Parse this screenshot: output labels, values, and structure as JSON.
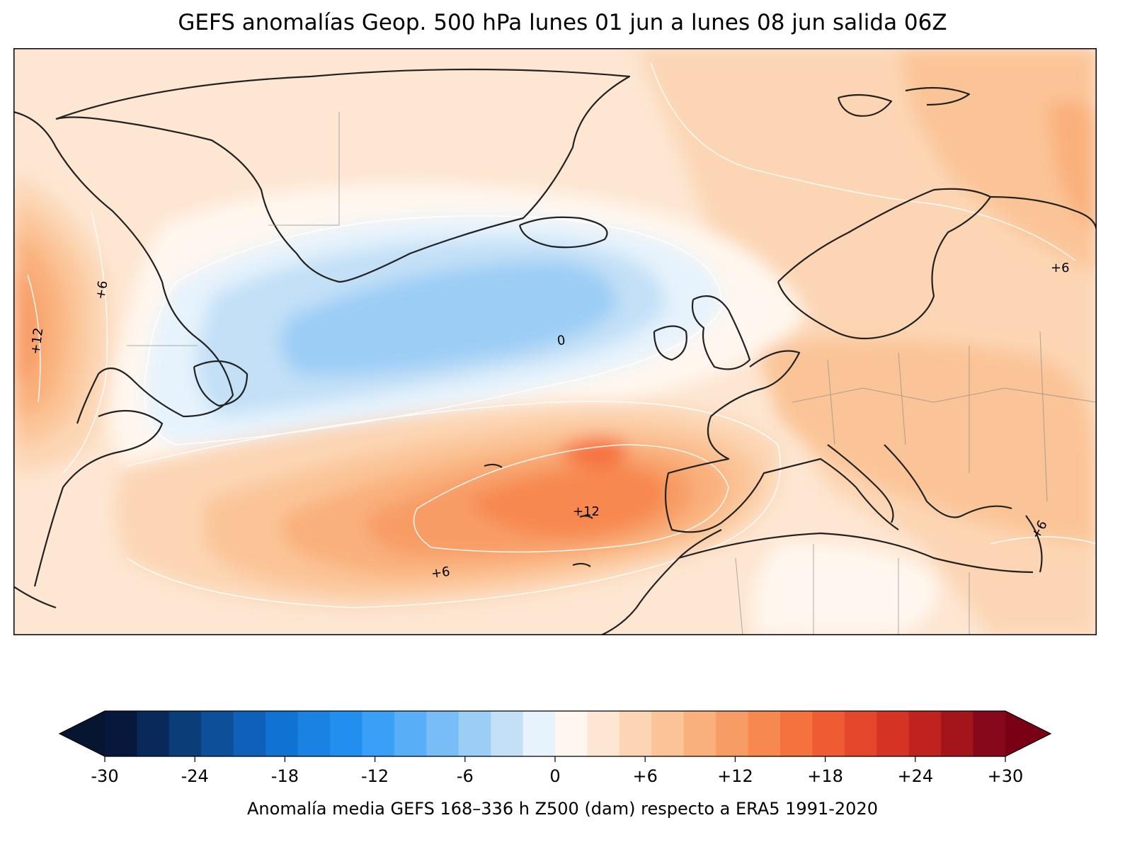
{
  "title": "GEFS anomalías Geop. 500 hPa lunes 01 jun a lunes 08 jun salida 06Z",
  "contour_labels": {
    "zero": "0",
    "plus12_atlantic": "+12",
    "plus6_atlantic": "+6",
    "plus6_canada": "+6",
    "plus12_canada": "+12",
    "plus6_russia": "+6",
    "plus6_egypt": "+6"
  },
  "colorbar": {
    "label": "Anomalía media GEFS 168–336 h Z500 (dam) respecto a ERA5 1991-2020",
    "ticks": [
      "-30",
      "-24",
      "-18",
      "-12",
      "-6",
      "0",
      "+6",
      "+12",
      "+18",
      "+24",
      "+30"
    ],
    "tick_values": [
      -30,
      -24,
      -18,
      -12,
      -6,
      0,
      6,
      12,
      18,
      24,
      30
    ],
    "range": [
      -30,
      30
    ],
    "step": 2,
    "colors": [
      "#08183c",
      "#08295a",
      "#0b3d78",
      "#0d4f98",
      "#0f60b8",
      "#1072d2",
      "#1a82e2",
      "#228ff0",
      "#3a9ff6",
      "#58aef7",
      "#78bdf5",
      "#9ccdf5",
      "#c3e0f7",
      "#e6f3fc",
      "#fff7ef",
      "#fde6d2",
      "#fcd6b4",
      "#fbc497",
      "#f9b07c",
      "#f89c66",
      "#f78850",
      "#f5723f",
      "#ef5c34",
      "#e5472c",
      "#d53324",
      "#c0221f",
      "#a3151a",
      "#87081a"
    ],
    "under_color": "#061530",
    "over_color": "#7a0014"
  },
  "chart_data": {
    "type": "heatmap",
    "title": "GEFS anomalías Geop. 500 hPa lunes 01 jun a lunes 08 jun salida 06Z",
    "variable": "Z500 anomaly",
    "unit": "dam",
    "contour_interval": 6,
    "labeled_contours": [
      0,
      6,
      12
    ],
    "features": [
      {
        "name": "negative anomaly south of Greenland / Iceland",
        "min_value": -6
      },
      {
        "name": "positive anomaly west of Iberia",
        "max_value": 14
      },
      {
        "name": "positive anomaly eastern Canada",
        "max_value": 12
      }
    ]
  }
}
